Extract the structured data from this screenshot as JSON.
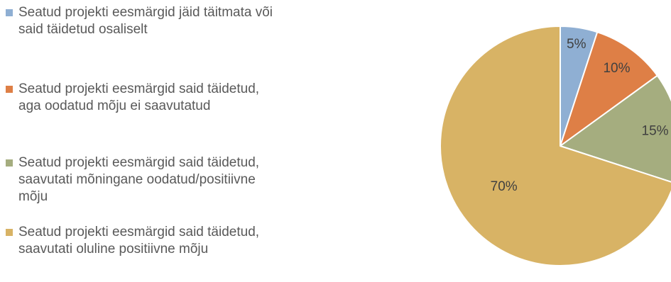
{
  "chart_data": {
    "type": "pie",
    "categories": [
      "Seatud projekti eesmärgid jäid täitmata või said täidetud osaliselt",
      "Seatud projekti eesmärgid said täidetud, aga oodatud mõju ei saavutatud",
      "Seatud projekti eesmärgid said täidetud, saavutati mõningane oodatud/positiivne mõju",
      "Seatud projekti eesmärgid said täidetud, saavutati oluline positiivne mõju"
    ],
    "values": [
      5,
      10,
      15,
      70
    ],
    "data_labels": [
      "5%",
      "10%",
      "15%",
      "70%"
    ],
    "colors": [
      "#8FAFD3",
      "#DE7F46",
      "#A5AD7F",
      "#D8B365"
    ],
    "legend_position": "left"
  }
}
